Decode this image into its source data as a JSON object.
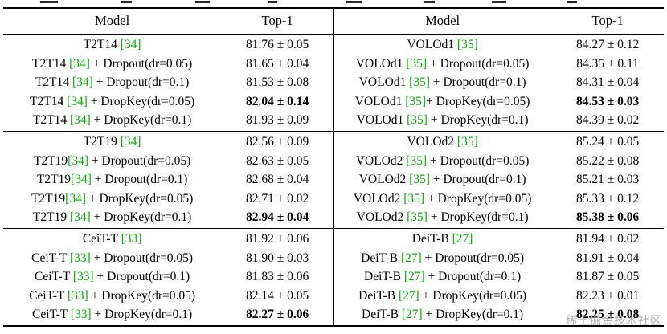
{
  "table": {
    "green": "#00b400",
    "headers": [
      "Model",
      "Top-1",
      "Model",
      "Top-1"
    ],
    "groups": [
      {
        "left": [
          {
            "pre": "T2T14 ",
            "cite": "[34]",
            "post": "",
            "value": "81.76 ± 0.05",
            "bold": false
          },
          {
            "pre": "T2T14 ",
            "cite": "[34]",
            "post": " + Dropout(dr=0.05)",
            "value": "81.65 ± 0.04",
            "bold": false
          },
          {
            "pre": "T2T14 ",
            "cite": "[34]",
            "post": " + Dropout(dr=0.1)",
            "value": "81.53 ± 0.08",
            "bold": false
          },
          {
            "pre": "T2T14 ",
            "cite": "[34]",
            "post": " + DropKey(dr=0.05)",
            "value": "82.04 ± 0.14",
            "bold": true
          },
          {
            "pre": "T2T14 ",
            "cite": "[34]",
            "post": " + DropKey(dr=0.1)",
            "value": "81.93 ± 0.09",
            "bold": false
          }
        ],
        "right": [
          {
            "pre": "VOLOd1 ",
            "cite": "[35]",
            "post": "",
            "value": "84.27 ± 0.12",
            "bold": false
          },
          {
            "pre": "VOLOd1 ",
            "cite": "[35]",
            "post": " + Dropout(dr=0.05)",
            "value": "84.35 ± 0.11",
            "bold": false
          },
          {
            "pre": "VOLOd1 ",
            "cite": "[35]",
            "post": " + Dropout(dr=0.1)",
            "value": "84.31 ± 0.04",
            "bold": false
          },
          {
            "pre": "VOLOd1 ",
            "cite": "[35]",
            "post": "+ DropKey(dr=0.05)",
            "value": "84.53 ± 0.03",
            "bold": true
          },
          {
            "pre": "VOLOd1 ",
            "cite": "[35]",
            "post": " + DropKey(dr=0.1)",
            "value": "84.39 ± 0.02",
            "bold": false
          }
        ]
      },
      {
        "left": [
          {
            "pre": "T2T19 ",
            "cite": "[34]",
            "post": "",
            "value": "82.56 ± 0.09",
            "bold": false
          },
          {
            "pre": "T2T19",
            "cite": "[34]",
            "post": " + Dropout(dr=0.05)",
            "value": "82.63 ± 0.05",
            "bold": false
          },
          {
            "pre": "T2T19",
            "cite": "[34]",
            "post": " + Dropout(dr=0.1)",
            "value": "82.68 ± 0.04",
            "bold": false
          },
          {
            "pre": "T2T19",
            "cite": "[34]",
            "post": " + DropKey(dr=0.05)",
            "value": "82.71 ± 0.02",
            "bold": false
          },
          {
            "pre": "T2T19 ",
            "cite": "[34]",
            "post": " + DropKey(dr=0.1)",
            "value": "82.94 ± 0.04",
            "bold": true
          }
        ],
        "right": [
          {
            "pre": "VOLOd2 ",
            "cite": "[35]",
            "post": "",
            "value": "85.24 ± 0.05",
            "bold": false
          },
          {
            "pre": "VOLOd2 ",
            "cite": "[35]",
            "post": " + Dropout(dr=0.05)",
            "value": "85.22 ± 0.08",
            "bold": false
          },
          {
            "pre": "VOLOd2 ",
            "cite": "[35]",
            "post": " + Dropout(dr=0.1)",
            "value": "85.21 ± 0.03",
            "bold": false
          },
          {
            "pre": "VOLOd2 ",
            "cite": "[35]",
            "post": " + DropKey(dr=0.05)",
            "value": "85.33 ± 0.12",
            "bold": false
          },
          {
            "pre": "VOLOd2 ",
            "cite": "[35]",
            "post": " + DropKey(dr=0.1)",
            "value": "85.38 ± 0.06",
            "bold": true
          }
        ]
      },
      {
        "left": [
          {
            "pre": "CeiT-T ",
            "cite": "[33]",
            "post": "",
            "value": "81.92 ± 0.06",
            "bold": false
          },
          {
            "pre": "CeiT-T ",
            "cite": "[33]",
            "post": " + Dropout(dr=0.05)",
            "value": "81.90 ± 0.03",
            "bold": false
          },
          {
            "pre": "CeiT-T ",
            "cite": "[33]",
            "post": " + Dropout(dr=0.1)",
            "value": "81.83 ± 0.06",
            "bold": false
          },
          {
            "pre": "CeiT-T ",
            "cite": "[33]",
            "post": " + DropKey(dr=0.05)",
            "value": "82.14 ± 0.05",
            "bold": false
          },
          {
            "pre": "CeiT-T ",
            "cite": "[33]",
            "post": " + DropKey(dr=0.1)",
            "value": "82.27 ± 0.06",
            "bold": true
          }
        ],
        "right": [
          {
            "pre": "DeiT-B ",
            "cite": "[27]",
            "post": "",
            "value": "81.94 ± 0.02",
            "bold": false
          },
          {
            "pre": "DeiT-B ",
            "cite": "[27]",
            "post": " + Dropout(dr=0.05)",
            "value": "81.91 ± 0.04",
            "bold": false
          },
          {
            "pre": "DeiT-B ",
            "cite": "[27]",
            "post": " + Dropout(dr=0.1)",
            "value": "81.87 ± 0.05",
            "bold": false
          },
          {
            "pre": "DeiT-B ",
            "cite": "[27]",
            "post": " + DropKey(dr=0.05)",
            "value": "82.23 ± 0.01",
            "bold": false
          },
          {
            "pre": "DeiT-B ",
            "cite": "[27]",
            "post": " + DropKey(dr=0.1)",
            "value": "82.25 ± 0.08",
            "bold": true
          }
        ]
      }
    ]
  },
  "watermark": "稀土掘金技术社区"
}
